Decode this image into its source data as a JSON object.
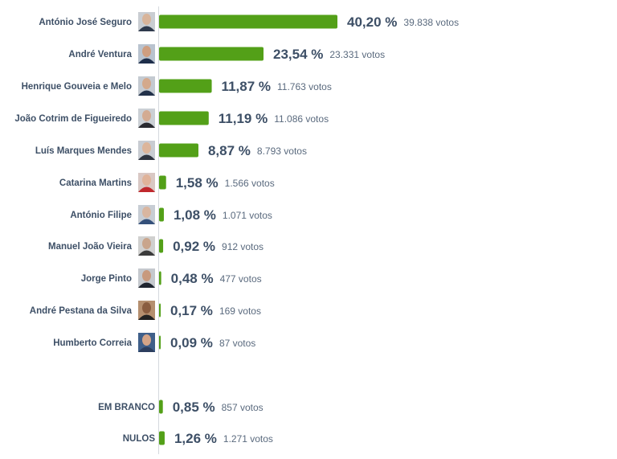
{
  "colors": {
    "bar": "#53a018",
    "text": "#3d4f66"
  },
  "chart_data": {
    "type": "bar",
    "orientation": "horizontal",
    "title": "",
    "xlim": [
      0,
      40.2
    ],
    "categories": [
      "António José Seguro",
      "André Ventura",
      "Henrique Gouveia e Melo",
      "João Cotrim de Figueiredo",
      "Luís Marques Mendes",
      "Catarina Martins",
      "António Filipe",
      "Manuel João Vieira",
      "Jorge Pinto",
      "André Pestana da Silva",
      "Humberto Correia",
      "EM BRANCO",
      "NULOS"
    ],
    "values": [
      40.2,
      23.54,
      11.87,
      11.19,
      8.87,
      1.58,
      1.08,
      0.92,
      0.48,
      0.17,
      0.09,
      0.85,
      1.26
    ],
    "value_labels": [
      "40,20 %",
      "23,54 %",
      "11,87 %",
      "11,19 %",
      "8,87 %",
      "1,58 %",
      "1,08 %",
      "0,92 %",
      "0,48 %",
      "0,17 %",
      "0,09 %",
      "0,85 %",
      "1,26 %"
    ],
    "vote_labels": [
      "39.838 votos",
      "23.331 votos",
      "11.763 votos",
      "11.086 votos",
      "8.793 votos",
      "1.566 votos",
      "1.071 votos",
      "912 votos",
      "477 votos",
      "169 votos",
      "87 votos",
      "857 votos",
      "1.271 votos"
    ],
    "has_avatar": [
      true,
      true,
      true,
      true,
      true,
      true,
      true,
      true,
      true,
      true,
      true,
      false,
      false
    ],
    "avatar_colors": [
      {
        "bg": "#c9cdd2",
        "face": "#d8b49a",
        "shirt": "#2f3a4c"
      },
      {
        "bg": "#b9c3cf",
        "face": "#cf9e80",
        "shirt": "#1e2e4a"
      },
      {
        "bg": "#c4cad1",
        "face": "#d4a98c",
        "shirt": "#22314a"
      },
      {
        "bg": "#cbd0d5",
        "face": "#d3ab92",
        "shirt": "#2a2a30"
      },
      {
        "bg": "#c8ccd2",
        "face": "#dcb59b",
        "shirt": "#2e3440"
      },
      {
        "bg": "#d9c8c4",
        "face": "#e0b39a",
        "shirt": "#c0282d"
      },
      {
        "bg": "#c7cdd4",
        "face": "#d9b6a0",
        "shirt": "#34507a"
      },
      {
        "bg": "#d0d0cf",
        "face": "#c9a58c",
        "shirt": "#3b3b3b"
      },
      {
        "bg": "#c5c9ce",
        "face": "#c89a7e",
        "shirt": "#1f2530"
      },
      {
        "bg": "#b58f6f",
        "face": "#8a5d40",
        "shirt": "#222222"
      },
      {
        "bg": "#3f5f8a",
        "face": "#d4a487",
        "shirt": "#2c3e5e"
      }
    ]
  }
}
